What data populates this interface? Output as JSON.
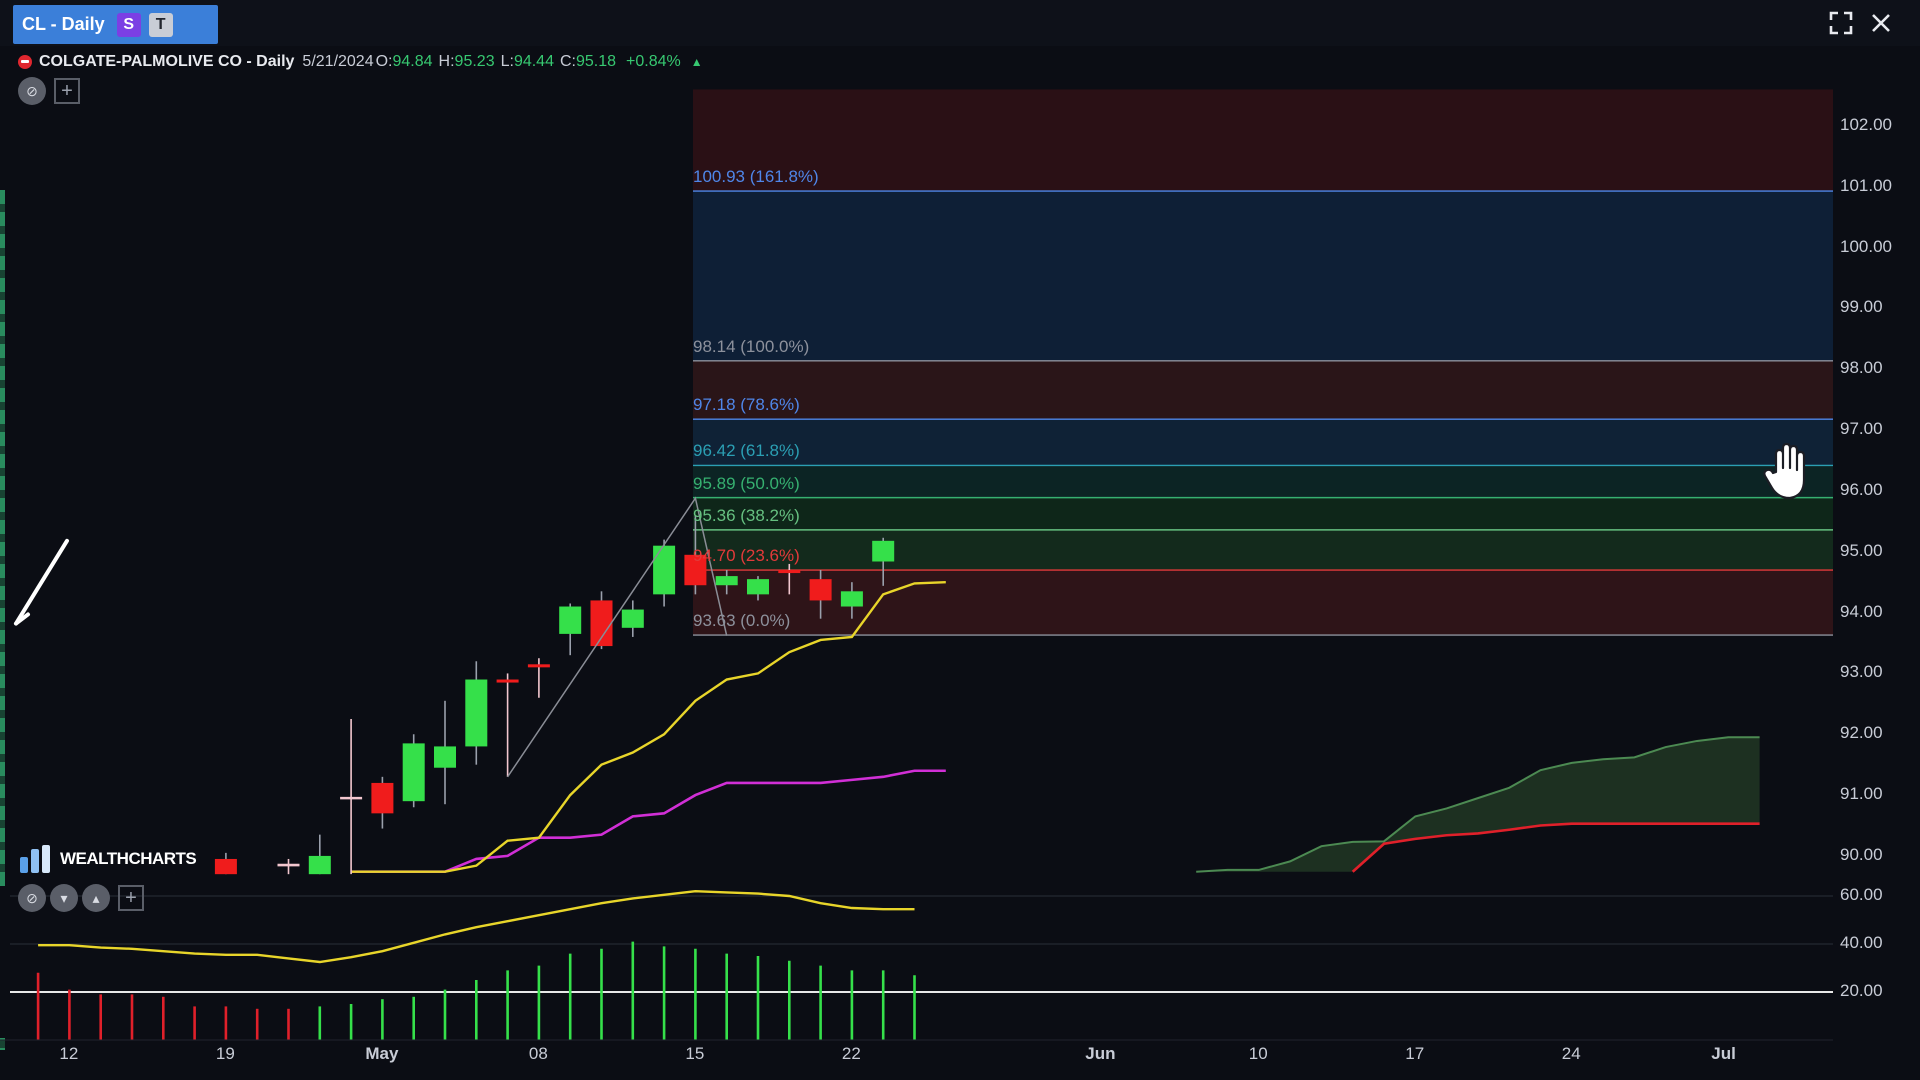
{
  "tab": {
    "title": "CL - Daily",
    "badge_s": "S",
    "badge_t": "T"
  },
  "window": {
    "expand_icon": "expand-icon",
    "close_icon": "close-icon"
  },
  "legend": {
    "title": "COLGATE-PALMOLIVE CO - Daily",
    "date": "5/21/2024",
    "o_label": "O:",
    "o_value": "94.84",
    "h_label": "H:",
    "h_value": "95.23",
    "l_label": "L:",
    "l_value": "94.44",
    "c_label": "C:",
    "c_value": "95.18",
    "change": "+0.84%"
  },
  "logo": {
    "text": "WEALTHCHARTS"
  },
  "price_axis": {
    "labels": [
      "102.00",
      "101.00",
      "100.00",
      "99.00",
      "98.00",
      "97.00",
      "96.00",
      "95.00",
      "94.00",
      "93.00",
      "92.00",
      "91.00",
      "90.00"
    ]
  },
  "indicator_axis": {
    "labels": [
      "60.00",
      "40.00",
      "20.00"
    ]
  },
  "time_axis": {
    "labels": [
      "12",
      "19",
      "May",
      "08",
      "15",
      "22",
      "Jun",
      "10",
      "17",
      "24",
      "Jul"
    ]
  },
  "fib_levels": [
    {
      "label": "100.93 (161.8%)",
      "price": 100.93,
      "color": "#4f86e8"
    },
    {
      "label": "98.14 (100.0%)",
      "price": 98.14,
      "color": "#8d919c"
    },
    {
      "label": "97.18 (78.6%)",
      "price": 97.18,
      "color": "#4f86e8"
    },
    {
      "label": "96.42 (61.8%)",
      "price": 96.42,
      "color": "#2b9fb3"
    },
    {
      "label": "95.89 (50.0%)",
      "price": 95.89,
      "color": "#36b070"
    },
    {
      "label": "95.36 (38.2%)",
      "price": 95.36,
      "color": "#66c080"
    },
    {
      "label": "94.70 (23.6%)",
      "price": 94.7,
      "color": "#e23a3a"
    },
    {
      "label": "93.63 (0.0%)",
      "price": 93.63,
      "color": "#8d919c"
    }
  ],
  "chart_data": {
    "type": "candlestick",
    "title": "COLGATE-PALMOLIVE CO - Daily",
    "ylim": [
      89.4,
      102.4
    ],
    "candles": [
      {
        "d": -7,
        "o": 89.95,
        "h": 90.05,
        "l": 89.7,
        "c": 89.7
      },
      {
        "d": -5,
        "o": 89.85,
        "h": 89.95,
        "l": 89.7,
        "c": 89.85
      },
      {
        "d": -4,
        "o": 89.7,
        "h": 90.35,
        "l": 89.7,
        "c": 90.0
      },
      {
        "d": -3,
        "o": 90.95,
        "h": 92.25,
        "l": 89.7,
        "c": 90.95
      },
      {
        "d": -2,
        "o": 91.2,
        "h": 91.3,
        "l": 90.45,
        "c": 90.7
      },
      {
        "d": -1,
        "o": 90.9,
        "h": 92.0,
        "l": 90.8,
        "c": 91.85
      },
      {
        "d": 0,
        "o": 91.45,
        "h": 92.55,
        "l": 90.85,
        "c": 91.8
      },
      {
        "d": 1,
        "o": 91.8,
        "h": 93.2,
        "l": 91.5,
        "c": 92.9
      },
      {
        "d": 2,
        "o": 92.9,
        "h": 93.0,
        "l": 91.3,
        "c": 92.85
      },
      {
        "d": 3,
        "o": 93.15,
        "h": 93.25,
        "l": 92.6,
        "c": 93.1
      },
      {
        "d": 4,
        "o": 93.65,
        "h": 94.15,
        "l": 93.3,
        "c": 94.1
      },
      {
        "d": 5,
        "o": 94.2,
        "h": 94.35,
        "l": 93.4,
        "c": 93.45
      },
      {
        "d": 6,
        "o": 93.75,
        "h": 94.2,
        "l": 93.6,
        "c": 94.05
      },
      {
        "d": 7,
        "o": 94.3,
        "h": 95.2,
        "l": 94.1,
        "c": 95.1
      },
      {
        "d": 8,
        "o": 94.95,
        "h": 95.6,
        "l": 94.3,
        "c": 94.45
      },
      {
        "d": 9,
        "o": 94.45,
        "h": 94.7,
        "l": 94.3,
        "c": 94.6
      },
      {
        "d": 10,
        "o": 94.3,
        "h": 94.6,
        "l": 94.2,
        "c": 94.55
      },
      {
        "d": 11,
        "o": 94.7,
        "h": 94.8,
        "l": 94.3,
        "c": 94.65
      },
      {
        "d": 12,
        "o": 94.55,
        "h": 94.7,
        "l": 93.9,
        "c": 94.2
      },
      {
        "d": 13,
        "o": 94.1,
        "h": 94.5,
        "l": 93.9,
        "c": 94.35
      },
      {
        "d": 14,
        "o": 94.84,
        "h": 95.23,
        "l": 94.44,
        "c": 95.18
      }
    ],
    "yellow_line": [
      [
        -3,
        89.74
      ],
      [
        0,
        89.74
      ],
      [
        1,
        89.84
      ],
      [
        2,
        90.25
      ],
      [
        3,
        90.3
      ],
      [
        4,
        91.0
      ],
      [
        5,
        91.5
      ],
      [
        6,
        91.7
      ],
      [
        7,
        92.0
      ],
      [
        8,
        92.55
      ],
      [
        9,
        92.9
      ],
      [
        10,
        93.0
      ],
      [
        11,
        93.35
      ],
      [
        12,
        93.55
      ],
      [
        13,
        93.6
      ],
      [
        14,
        94.3
      ],
      [
        15,
        94.48
      ],
      [
        16,
        94.5
      ]
    ],
    "magenta_line": [
      [
        -3,
        89.74
      ],
      [
        0,
        89.74
      ],
      [
        1,
        89.95
      ],
      [
        2,
        90.0
      ],
      [
        3,
        90.3
      ],
      [
        4,
        90.3
      ],
      [
        5,
        90.35
      ],
      [
        6,
        90.65
      ],
      [
        7,
        90.7
      ],
      [
        8,
        91.0
      ],
      [
        9,
        91.2
      ],
      [
        10,
        91.2
      ],
      [
        11,
        91.2
      ],
      [
        12,
        91.2
      ],
      [
        13,
        91.25
      ],
      [
        14,
        91.3
      ],
      [
        15,
        91.4
      ],
      [
        16,
        91.4
      ]
    ],
    "cloud_green": [
      [
        24,
        89.74
      ],
      [
        25,
        89.77
      ],
      [
        26,
        89.77
      ],
      [
        27,
        89.91
      ],
      [
        28,
        90.16
      ],
      [
        29,
        90.23
      ],
      [
        30,
        90.24
      ],
      [
        31,
        90.65
      ],
      [
        32,
        90.78
      ],
      [
        33,
        90.95
      ],
      [
        34,
        91.12
      ],
      [
        35,
        91.41
      ],
      [
        36,
        91.53
      ],
      [
        37,
        91.59
      ],
      [
        38,
        91.62
      ],
      [
        39,
        91.79
      ],
      [
        40,
        91.89
      ],
      [
        41,
        91.95
      ],
      [
        42,
        91.95
      ]
    ],
    "cloud_red": [
      [
        29,
        89.74
      ],
      [
        30,
        90.2
      ],
      [
        31,
        90.28
      ],
      [
        32,
        90.34
      ],
      [
        33,
        90.37
      ],
      [
        34,
        90.43
      ],
      [
        35,
        90.5
      ],
      [
        36,
        90.53
      ],
      [
        37,
        90.53
      ],
      [
        38,
        90.53
      ],
      [
        39,
        90.53
      ],
      [
        40,
        90.53
      ],
      [
        41,
        90.53
      ],
      [
        42,
        90.53
      ]
    ],
    "osc_line": [
      [
        -13,
        39.5
      ],
      [
        -12,
        39.5
      ],
      [
        -11,
        38.5
      ],
      [
        -10,
        38.0
      ],
      [
        -9,
        37.0
      ],
      [
        -8,
        36.0
      ],
      [
        -7,
        35.5
      ],
      [
        -6,
        35.5
      ],
      [
        -5,
        34.0
      ],
      [
        -4,
        32.5
      ],
      [
        -3,
        34.5
      ],
      [
        -2,
        37.0
      ],
      [
        -1,
        40.5
      ],
      [
        0,
        44.0
      ],
      [
        1,
        47.0
      ],
      [
        2,
        49.5
      ],
      [
        3,
        52.0
      ],
      [
        4,
        54.5
      ],
      [
        5,
        57.0
      ],
      [
        6,
        59.0
      ],
      [
        7,
        60.5
      ],
      [
        8,
        62.0
      ],
      [
        9,
        61.5
      ],
      [
        10,
        61.0
      ],
      [
        11,
        60.0
      ],
      [
        12,
        57.0
      ],
      [
        13,
        55.0
      ],
      [
        14,
        54.5
      ],
      [
        15,
        54.5
      ]
    ],
    "osc_bars": [
      [
        -13,
        28
      ],
      [
        -12,
        21
      ],
      [
        -11,
        19
      ],
      [
        -10,
        19
      ],
      [
        -9,
        18
      ],
      [
        -8,
        14
      ],
      [
        -7,
        14
      ],
      [
        -6,
        13
      ],
      [
        -5,
        13
      ],
      [
        -4,
        14
      ],
      [
        -3,
        15
      ],
      [
        -2,
        17
      ],
      [
        -1,
        18
      ],
      [
        0,
        21
      ],
      [
        1,
        25
      ],
      [
        2,
        29
      ],
      [
        3,
        31
      ],
      [
        4,
        36
      ],
      [
        5,
        38
      ],
      [
        6,
        41
      ],
      [
        7,
        39
      ],
      [
        8,
        38
      ],
      [
        9,
        36
      ],
      [
        10,
        35
      ],
      [
        11,
        33
      ],
      [
        12,
        31
      ],
      [
        13,
        29
      ],
      [
        14,
        29
      ],
      [
        15,
        27
      ]
    ],
    "osc_ylim": [
      0,
      70
    ]
  }
}
